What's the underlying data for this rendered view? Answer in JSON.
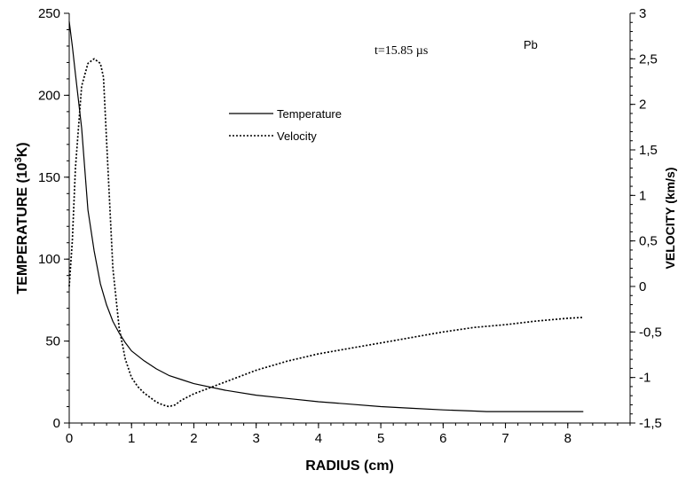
{
  "chart_data": {
    "type": "line",
    "title": "",
    "xlabel": "RADIUS (cm)",
    "ylabel_left_prefix": "TEMPERATURE (10",
    "ylabel_left_sup": "3",
    "ylabel_left_suffix": "K)",
    "ylabel_right": "VELOCITY (km/s)",
    "xlim": [
      0,
      9
    ],
    "ylim_left": [
      0,
      250
    ],
    "ylim_right": [
      -1.5,
      3
    ],
    "x_ticks": [
      "0",
      "1",
      "2",
      "3",
      "4",
      "5",
      "6",
      "7",
      "8"
    ],
    "y_left_ticks": [
      "0",
      "50",
      "100",
      "150",
      "200",
      "250"
    ],
    "y_right_ticks": [
      "-1,5",
      "-1",
      "-0,5",
      "0",
      "0,5",
      "1",
      "1,5",
      "2",
      "2,5",
      "3"
    ],
    "grid": false,
    "legend_position": "upper-center",
    "annotations": {
      "time": "t=15.85 µs",
      "material": "Pb"
    },
    "series": [
      {
        "name": "Temperature",
        "axis": "left",
        "style": "solid",
        "x": [
          0,
          0.05,
          0.1,
          0.2,
          0.3,
          0.4,
          0.5,
          0.6,
          0.7,
          0.8,
          0.9,
          1.0,
          1.2,
          1.4,
          1.6,
          1.8,
          2.0,
          2.5,
          3.0,
          3.5,
          4.0,
          4.5,
          5.0,
          5.5,
          6.0,
          6.5,
          6.7,
          7.0,
          7.5,
          8.0,
          8.25
        ],
        "y": [
          245,
          230,
          213,
          180,
          130,
          105,
          85,
          72,
          62,
          55,
          49,
          44,
          38,
          33,
          29,
          26.5,
          24,
          20,
          17,
          15,
          13,
          11.5,
          10,
          9,
          8,
          7.3,
          7,
          7,
          7,
          7,
          7
        ]
      },
      {
        "name": "Velocity",
        "axis": "right",
        "style": "dotted",
        "x": [
          0,
          0.05,
          0.1,
          0.2,
          0.3,
          0.4,
          0.5,
          0.55,
          0.6,
          0.7,
          0.8,
          0.9,
          1.0,
          1.1,
          1.2,
          1.3,
          1.4,
          1.5,
          1.6,
          1.7,
          1.8,
          2.0,
          2.5,
          3.0,
          3.5,
          4.0,
          4.5,
          5.0,
          5.5,
          6.0,
          6.5,
          7.0,
          7.5,
          8.0,
          8.25
        ],
        "y": [
          0.0,
          0.5,
          1.3,
          2.2,
          2.45,
          2.5,
          2.45,
          2.3,
          1.6,
          0.2,
          -0.45,
          -0.8,
          -1.0,
          -1.1,
          -1.17,
          -1.22,
          -1.27,
          -1.3,
          -1.32,
          -1.3,
          -1.25,
          -1.18,
          -1.05,
          -0.92,
          -0.82,
          -0.74,
          -0.68,
          -0.62,
          -0.56,
          -0.5,
          -0.45,
          -0.42,
          -0.38,
          -0.35,
          -0.34
        ]
      }
    ]
  }
}
